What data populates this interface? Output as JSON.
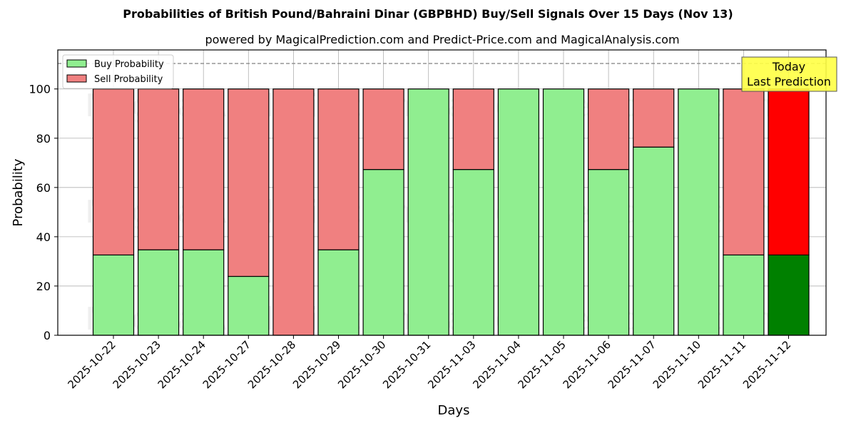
{
  "header": {
    "title": "Probabilities of British Pound/Bahraini Dinar (GBPBHD) Buy/Sell Signals Over 15 Days (Nov 13)",
    "subtitle": "powered by MagicalPrediction.com and Predict-Price.com and MagicalAnalysis.com"
  },
  "legend": {
    "buy_label": "Buy Probability",
    "sell_label": "Sell Probability"
  },
  "annotation": {
    "line1": "Today",
    "line2": "Last Prediction"
  },
  "watermarks": [
    "MagicalAnalysis.com",
    "MagicalPrediction.com"
  ],
  "colors": {
    "buy": "#90ee90",
    "sell": "#f08080",
    "today_buy": "#008000",
    "today_sell": "#ff0000",
    "annotation_bg": "#ffff44"
  },
  "chart_data": {
    "type": "bar",
    "stacked": true,
    "title": "Probabilities of British Pound/Bahraini Dinar (GBPBHD) Buy/Sell Signals Over 15 Days (Nov 13)",
    "subtitle": "powered by MagicalPrediction.com and Predict-Price.com and MagicalAnalysis.com",
    "xlabel": "Days",
    "ylabel": "Probability",
    "ylim": [
      0,
      115
    ],
    "yticks": [
      0,
      20,
      40,
      60,
      80,
      100
    ],
    "grid": true,
    "legend_position": "upper left",
    "reference_line": {
      "y": 110,
      "style": "dashed"
    },
    "categories": [
      "2025-10-22",
      "2025-10-23",
      "2025-10-24",
      "2025-10-27",
      "2025-10-28",
      "2025-10-29",
      "2025-10-30",
      "2025-10-31",
      "2025-11-03",
      "2025-11-04",
      "2025-11-05",
      "2025-11-06",
      "2025-11-07",
      "2025-11-10",
      "2025-11-11",
      "2025-11-12"
    ],
    "series": [
      {
        "name": "Buy Probability",
        "values": [
          32.6,
          34.7,
          34.7,
          23.9,
          0,
          34.7,
          67.3,
          100,
          67.3,
          100,
          100,
          67.3,
          76.4,
          100,
          32.6,
          32.6
        ]
      },
      {
        "name": "Sell Probability",
        "values": [
          67.4,
          65.3,
          65.3,
          76.1,
          100,
          65.3,
          32.7,
          0,
          32.7,
          0,
          0,
          32.7,
          23.6,
          0,
          67.4,
          67.4
        ]
      }
    ],
    "highlight": {
      "category": "2025-11-12",
      "label": "Today\nLast Prediction"
    }
  }
}
